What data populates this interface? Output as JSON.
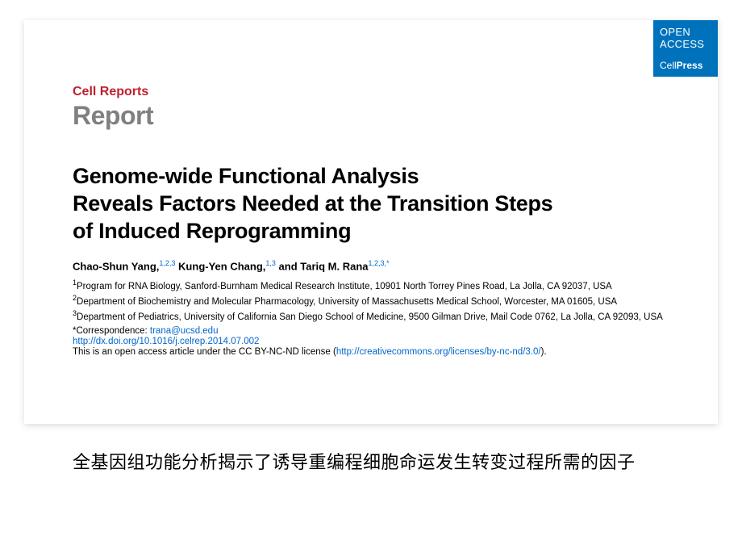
{
  "badge": {
    "line1": "OPEN",
    "line2": "ACCESS",
    "brand_a": "Cell",
    "brand_b": "Press",
    "bg_color": "#0072bc"
  },
  "journal": "Cell Reports",
  "section": "Report",
  "title_l1": "Genome-wide Functional Analysis",
  "title_l2": "Reveals Factors Needed at the Transition Steps",
  "title_l3": "of Induced Reprogramming",
  "authors": {
    "a1_name": "Chao-Shun Yang,",
    "a1_aff": "1,2,3",
    "a2_name": " Kung-Yen Chang,",
    "a2_aff": "1,3",
    "a3_name": " and Tariq M. Rana",
    "a3_aff": "1,2,3,*"
  },
  "affil1_sup": "1",
  "affil1": "Program for RNA Biology, Sanford-Burnham Medical Research Institute, 10901 North Torrey Pines Road, La Jolla, CA 92037, USA",
  "affil2_sup": "2",
  "affil2": "Department of Biochemistry and Molecular Pharmacology, University of Massachusetts Medical School, Worcester, MA 01605, USA",
  "affil3_sup": "3",
  "affil3": "Department of Pediatrics, University of California San Diego School of Medicine, 9500 Gilman Drive, Mail Code 0762, La Jolla, CA 92093, USA",
  "corr_label": "*Correspondence: ",
  "corr_email": "trana@ucsd.edu",
  "doi": " http://dx.doi.org/10.1016/j.celrep.2014.07.002",
  "license_text": "This is an open access article under the CC BY-NC-ND license (",
  "license_link": "http://creativecommons.org/licenses/by-nc-nd/3.0/",
  "license_close": ").",
  "chinese": "全基因组功能分析揭示了诱导重编程细胞命运发生转变过程所需的因子",
  "colors": {
    "journal_red": "#bf1f2e",
    "report_gray": "#808080",
    "link_blue": "#0066cc",
    "text_black": "#000000",
    "bg_white": "#ffffff"
  },
  "typography": {
    "journal_fontsize": 16,
    "report_fontsize": 32,
    "title_fontsize": 27,
    "authors_fontsize": 13,
    "affil_fontsize": 11.5,
    "chinese_fontsize": 22
  }
}
